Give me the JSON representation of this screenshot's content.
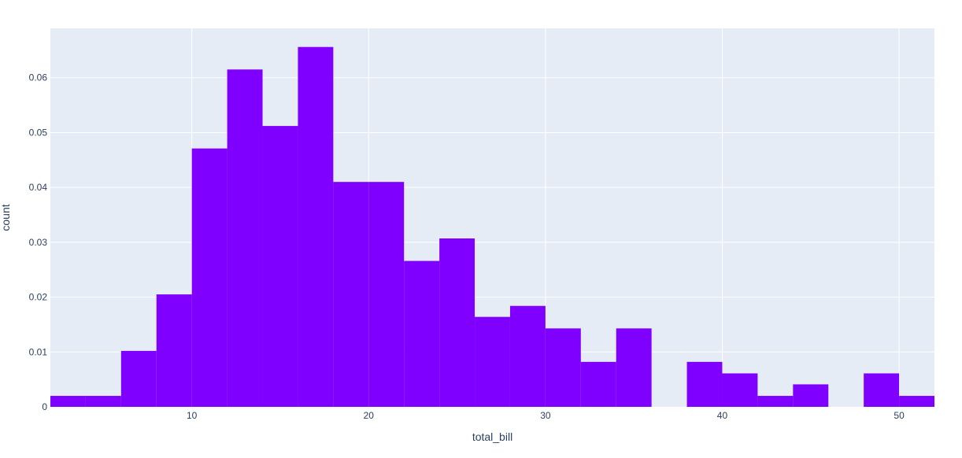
{
  "chart_data": {
    "type": "bar",
    "subtype": "histogram",
    "title": "",
    "xlabel": "total_bill",
    "ylabel": "count",
    "bins": [
      {
        "start": 2,
        "end": 4,
        "value": 0.002
      },
      {
        "start": 4,
        "end": 6,
        "value": 0.002
      },
      {
        "start": 6,
        "end": 8,
        "value": 0.0102
      },
      {
        "start": 8,
        "end": 10,
        "value": 0.0205
      },
      {
        "start": 10,
        "end": 12,
        "value": 0.0471
      },
      {
        "start": 12,
        "end": 14,
        "value": 0.0615
      },
      {
        "start": 14,
        "end": 16,
        "value": 0.0512
      },
      {
        "start": 16,
        "end": 18,
        "value": 0.0656
      },
      {
        "start": 18,
        "end": 20,
        "value": 0.041
      },
      {
        "start": 20,
        "end": 22,
        "value": 0.041
      },
      {
        "start": 22,
        "end": 24,
        "value": 0.0266
      },
      {
        "start": 24,
        "end": 26,
        "value": 0.0307
      },
      {
        "start": 26,
        "end": 28,
        "value": 0.0164
      },
      {
        "start": 28,
        "end": 30,
        "value": 0.0184
      },
      {
        "start": 30,
        "end": 32,
        "value": 0.0143
      },
      {
        "start": 32,
        "end": 34,
        "value": 0.0082
      },
      {
        "start": 34,
        "end": 36,
        "value": 0.0143
      },
      {
        "start": 36,
        "end": 38,
        "value": 0
      },
      {
        "start": 38,
        "end": 40,
        "value": 0.0082
      },
      {
        "start": 40,
        "end": 42,
        "value": 0.0061
      },
      {
        "start": 42,
        "end": 44,
        "value": 0.002
      },
      {
        "start": 44,
        "end": 46,
        "value": 0.0041
      },
      {
        "start": 46,
        "end": 48,
        "value": 0
      },
      {
        "start": 48,
        "end": 50,
        "value": 0.0061
      },
      {
        "start": 50,
        "end": 52,
        "value": 0.002
      }
    ],
    "xlim": [
      2,
      52
    ],
    "ylim": [
      0,
      0.069
    ],
    "x_ticks": [
      {
        "value": 10,
        "label": "10"
      },
      {
        "value": 20,
        "label": "20"
      },
      {
        "value": 30,
        "label": "30"
      },
      {
        "value": 40,
        "label": "40"
      },
      {
        "value": 50,
        "label": "50"
      }
    ],
    "y_ticks": [
      {
        "value": 0,
        "label": "0"
      },
      {
        "value": 0.01,
        "label": "0.01"
      },
      {
        "value": 0.02,
        "label": "0.02"
      },
      {
        "value": 0.03,
        "label": "0.03"
      },
      {
        "value": 0.04,
        "label": "0.04"
      },
      {
        "value": 0.05,
        "label": "0.05"
      },
      {
        "value": 0.06,
        "label": "0.06"
      }
    ],
    "grid": true,
    "colors": {
      "bar": "#7f00ff",
      "plot_background": "#e5ecf6",
      "grid": "#ffffff",
      "tick_text": "#2a3f5f",
      "axis_title": "#2a3f5f"
    }
  }
}
